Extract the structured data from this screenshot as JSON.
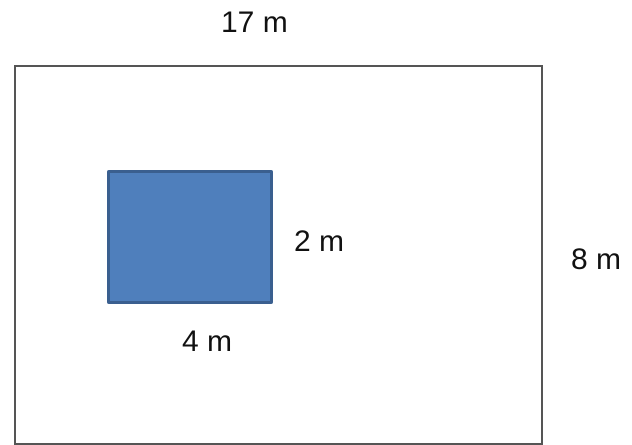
{
  "labels": {
    "outer_width": "17 m",
    "outer_height": "8 m",
    "inner_height": "2 m",
    "inner_width": "4 m"
  },
  "colors": {
    "outer_border": "#555555",
    "inner_fill": "#4f7fbc",
    "inner_border": "#3a5f8f"
  }
}
